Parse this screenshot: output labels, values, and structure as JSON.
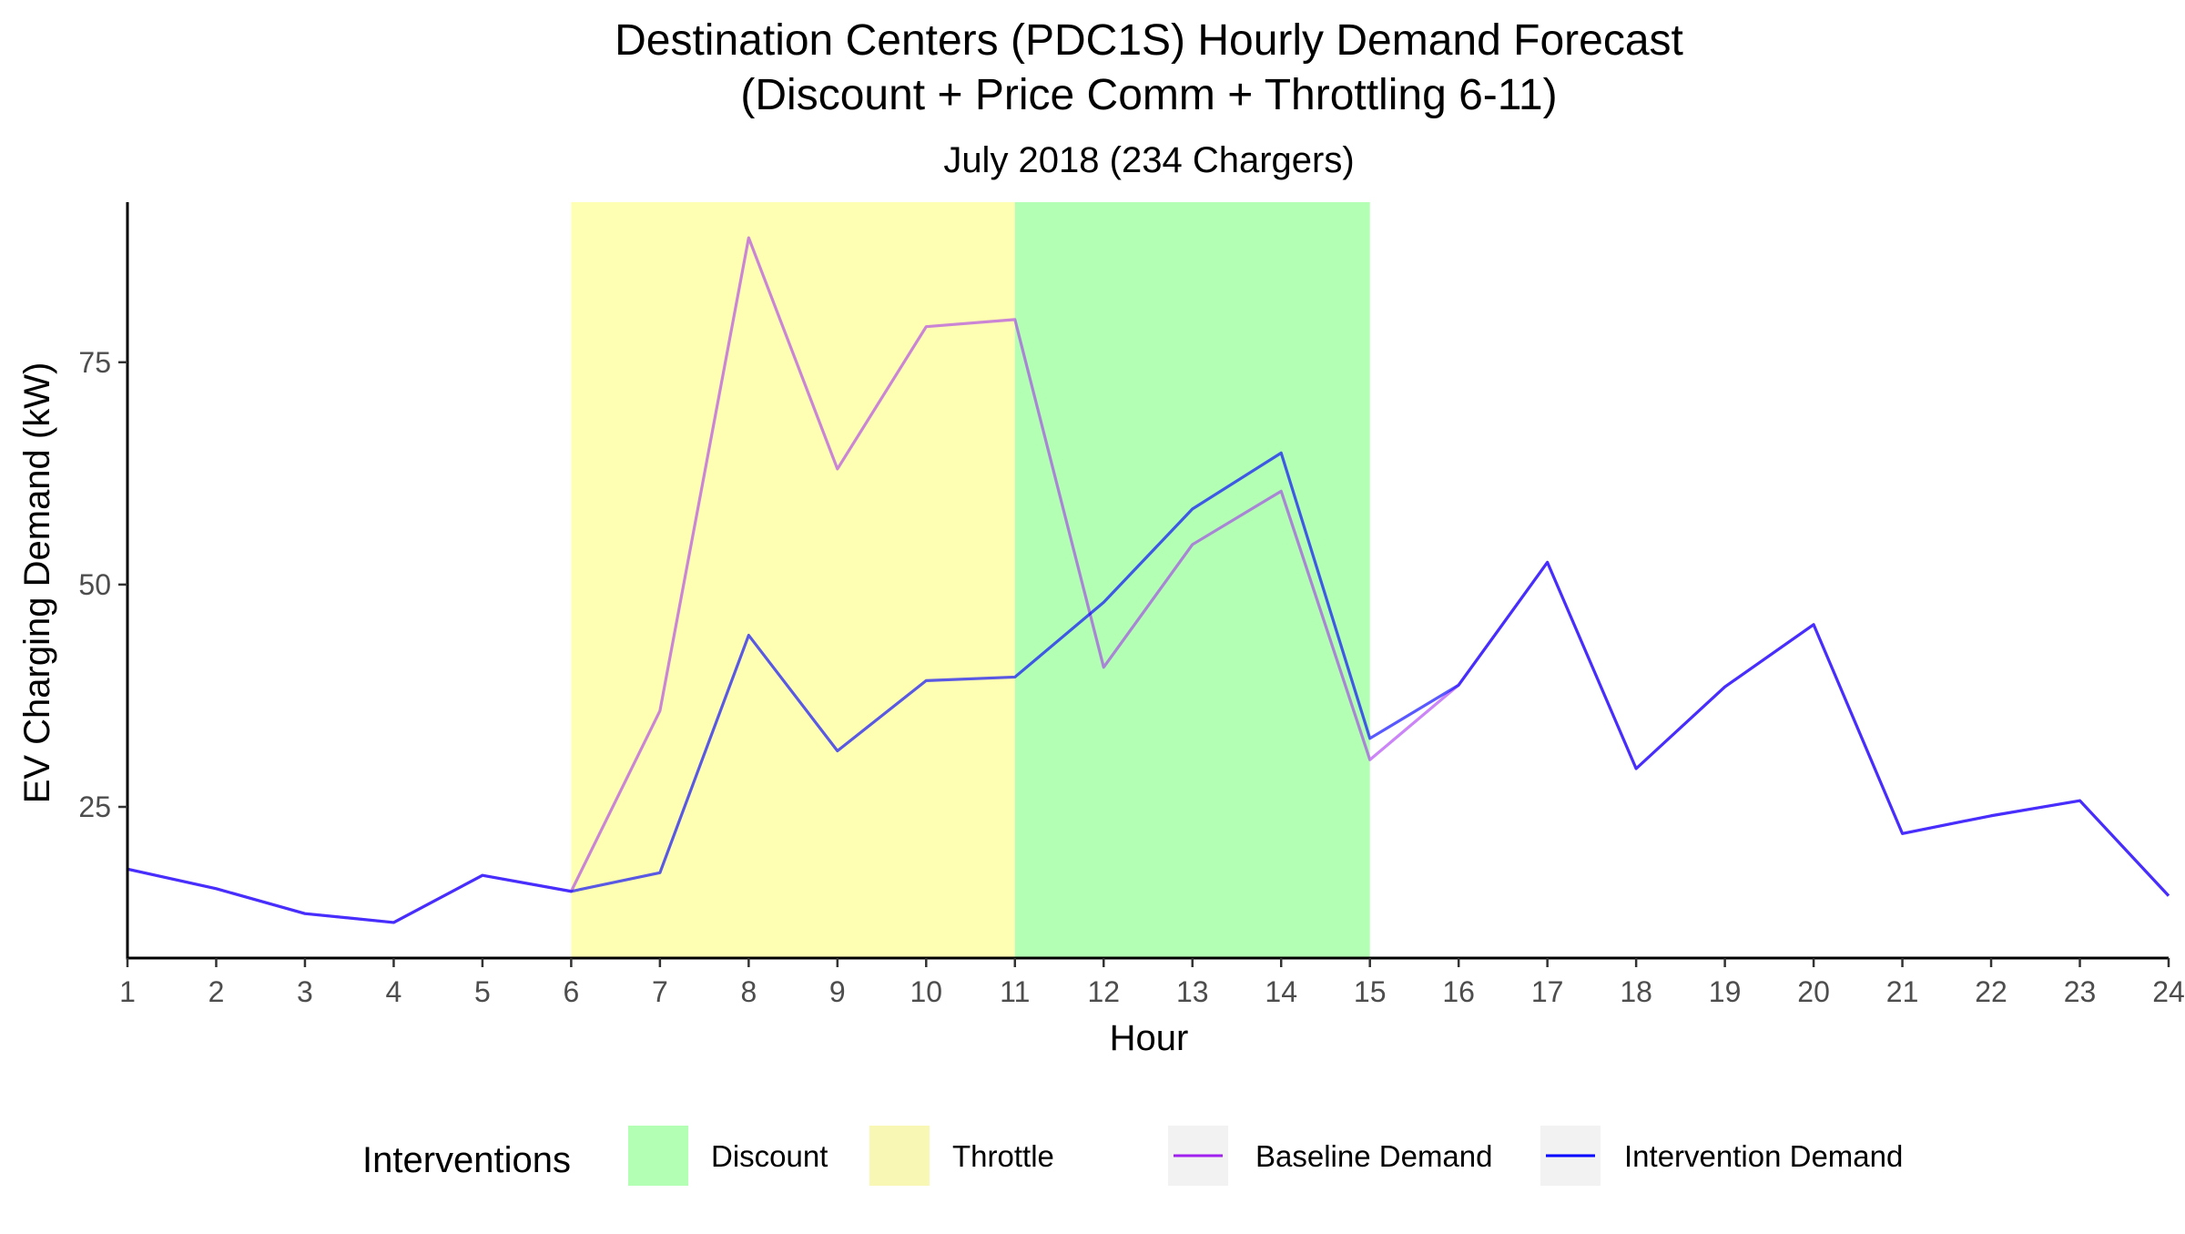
{
  "chart_data": {
    "type": "line",
    "title": "Destination Centers (PDC1S) Hourly Demand Forecast",
    "title_line2": "(Discount + Price Comm + Throttling 6-11)",
    "subtitle": "July 2018 (234 Chargers)",
    "xlabel": "Hour",
    "ylabel": "EV Charging Demand (kW)",
    "x": [
      1,
      2,
      3,
      4,
      5,
      6,
      7,
      8,
      9,
      10,
      11,
      12,
      13,
      14,
      15,
      16,
      17,
      18,
      19,
      20,
      21,
      22,
      23,
      24
    ],
    "xlim": [
      1,
      24
    ],
    "ylim": [
      8,
      93
    ],
    "yticks": [
      25,
      50,
      75
    ],
    "grid": false,
    "series": [
      {
        "name": "Baseline Demand",
        "color": "#a020f0",
        "values": [
          18,
          15.8,
          13,
          12,
          17.3,
          15.5,
          35.8,
          89,
          63,
          79,
          79.8,
          40.7,
          54.5,
          60.5,
          30.3,
          38.7,
          52.5,
          29.3,
          38.5,
          45.5,
          22,
          24,
          25.7,
          15
        ]
      },
      {
        "name": "Intervention Demand",
        "color": "#0000ff",
        "values": [
          18,
          15.8,
          13,
          12,
          17.3,
          15.5,
          17.6,
          44.3,
          31.3,
          39.2,
          39.6,
          48,
          58.5,
          64.8,
          32.7,
          38.7,
          52.5,
          29.3,
          38.5,
          45.5,
          22,
          24,
          25.7,
          15
        ]
      }
    ],
    "bands": [
      {
        "name": "Throttle",
        "start": 6,
        "end": 11,
        "color": "#ffffb3"
      },
      {
        "name": "Discount",
        "start": 11,
        "end": 15,
        "color": "#b3ffb3"
      }
    ],
    "legend": {
      "title": "Interventions",
      "position": "bottom",
      "items": [
        {
          "label": "Discount",
          "kind": "fill",
          "color": "#b3ffb3"
        },
        {
          "label": "Throttle",
          "kind": "fill",
          "color": "#f9f7b4"
        },
        {
          "label": "Baseline Demand",
          "kind": "line",
          "color": "#a020f0"
        },
        {
          "label": "Intervention Demand",
          "kind": "line",
          "color": "#0000ff"
        }
      ]
    }
  }
}
